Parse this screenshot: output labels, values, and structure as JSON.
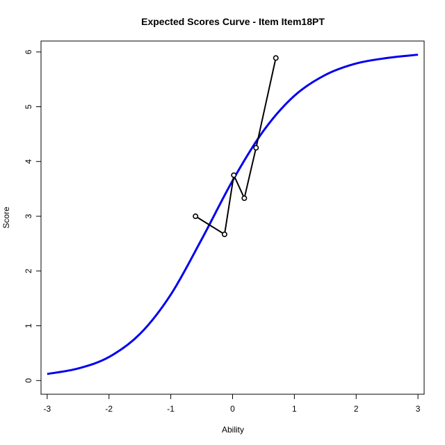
{
  "chart_data": {
    "type": "line",
    "title": "Expected Scores Curve - Item  Item18PT",
    "xlabel": "Ability",
    "ylabel": "Score",
    "xlim": [
      -3.1,
      3.1
    ],
    "ylim": [
      -0.25,
      6.2
    ],
    "x_ticks": [
      -3,
      -2,
      -1,
      0,
      1,
      2,
      3
    ],
    "y_ticks": [
      0,
      1,
      2,
      3,
      4,
      5,
      6
    ],
    "grid": false,
    "legend": "none",
    "series": [
      {
        "color": "#0000ee",
        "style": "smooth-curve",
        "x": [
          -3.0,
          -2.5,
          -2.0,
          -1.5,
          -1.0,
          -0.5,
          0.0,
          0.5,
          1.0,
          1.5,
          2.0,
          2.5,
          3.0
        ],
        "y": [
          0.12,
          0.22,
          0.43,
          0.85,
          1.57,
          2.58,
          3.65,
          4.56,
          5.2,
          5.58,
          5.79,
          5.89,
          5.95
        ]
      },
      {
        "color": "#000000",
        "style": "line-with-open-circles",
        "x": [
          -0.6,
          -0.13,
          0.02,
          0.19,
          0.38,
          0.7
        ],
        "y": [
          3.0,
          2.67,
          3.75,
          3.33,
          4.25,
          5.89
        ]
      }
    ]
  }
}
